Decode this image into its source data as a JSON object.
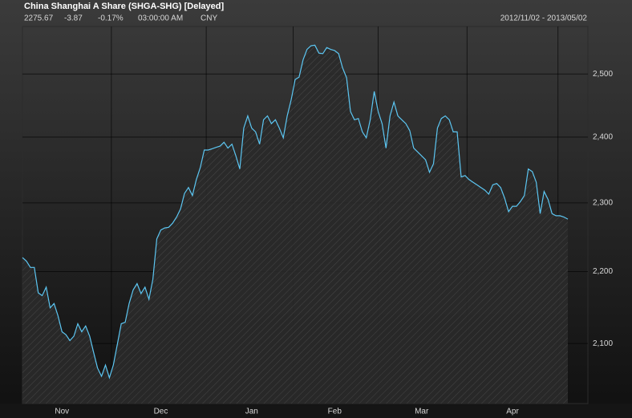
{
  "chart_data": {
    "type": "area_line",
    "title": "China Shanghai A Share (SHGA-SHG) [Delayed]",
    "info": [
      "2275.67",
      "-3.87",
      "-0.17%",
      "03:00:00 AM",
      "CNY"
    ],
    "date_range": "2012/11/02 - 2013/05/02",
    "categories": [
      null,
      null,
      null,
      null,
      null,
      null,
      null,
      null,
      null,
      null,
      "Nov",
      null,
      null,
      null,
      null,
      null,
      null,
      null,
      null,
      null,
      null,
      null,
      null,
      null,
      null,
      null,
      null,
      null,
      null,
      null,
      null,
      null,
      null,
      null,
      null,
      "Dec",
      null,
      null,
      null,
      null,
      null,
      null,
      null,
      null,
      null,
      null,
      null,
      null,
      null,
      null,
      null,
      null,
      null,
      null,
      null,
      null,
      null,
      null,
      "Jan",
      null,
      null,
      null,
      null,
      null,
      null,
      null,
      null,
      null,
      null,
      null,
      null,
      null,
      null,
      null,
      null,
      null,
      null,
      null,
      null,
      "Feb",
      null,
      null,
      null,
      null,
      null,
      null,
      null,
      null,
      null,
      null,
      null,
      null,
      null,
      null,
      null,
      null,
      null,
      null,
      null,
      null,
      null,
      "Mar",
      null,
      null,
      null,
      null,
      null,
      null,
      null,
      null,
      null,
      null,
      null,
      null,
      null,
      null,
      null,
      null,
      null,
      null,
      null,
      null,
      null,
      null,
      "Apr",
      null,
      null,
      null,
      null,
      null,
      null,
      null,
      null,
      null,
      null,
      null,
      null,
      null,
      null
    ],
    "values": [
      2220,
      2215,
      2206,
      2206,
      2170,
      2166,
      2178,
      2149,
      2155,
      2138,
      2116,
      2112,
      2104,
      2110,
      2127,
      2116,
      2124,
      2110,
      2088,
      2067,
      2056,
      2071,
      2054,
      2071,
      2099,
      2127,
      2129,
      2155,
      2174,
      2183,
      2169,
      2178,
      2161,
      2189,
      2247,
      2260,
      2263,
      2264,
      2270,
      2279,
      2291,
      2314,
      2323,
      2311,
      2335,
      2353,
      2380,
      2380,
      2382,
      2384,
      2386,
      2392,
      2383,
      2389,
      2371,
      2351,
      2414,
      2433,
      2414,
      2408,
      2389,
      2427,
      2433,
      2421,
      2427,
      2414,
      2399,
      2433,
      2459,
      2491,
      2495,
      2523,
      2540,
      2546,
      2547,
      2534,
      2533,
      2543,
      2540,
      2538,
      2533,
      2510,
      2494,
      2440,
      2427,
      2429,
      2408,
      2399,
      2427,
      2472,
      2440,
      2421,
      2383,
      2433,
      2455,
      2433,
      2427,
      2421,
      2410,
      2383,
      2377,
      2371,
      2365,
      2346,
      2359,
      2414,
      2429,
      2433,
      2427,
      2408,
      2408,
      2339,
      2341,
      2335,
      2331,
      2327,
      2323,
      2319,
      2313,
      2327,
      2329,
      2323,
      2307,
      2287,
      2295,
      2295,
      2302,
      2311,
      2351,
      2347,
      2331,
      2284,
      2317,
      2305,
      2284,
      2281,
      2281,
      2279,
      2276
    ],
    "color": "#5cc6f2",
    "log_scale": true,
    "ylim": [
      2020,
      2578
    ],
    "yticks": [
      {
        "value": 2100,
        "label": "2,100"
      },
      {
        "value": 2200,
        "label": "2,200"
      },
      {
        "value": 2300,
        "label": "2,300"
      },
      {
        "value": 2400,
        "label": "2,400"
      },
      {
        "value": 2500,
        "label": "2,500"
      }
    ],
    "grid": true
  }
}
